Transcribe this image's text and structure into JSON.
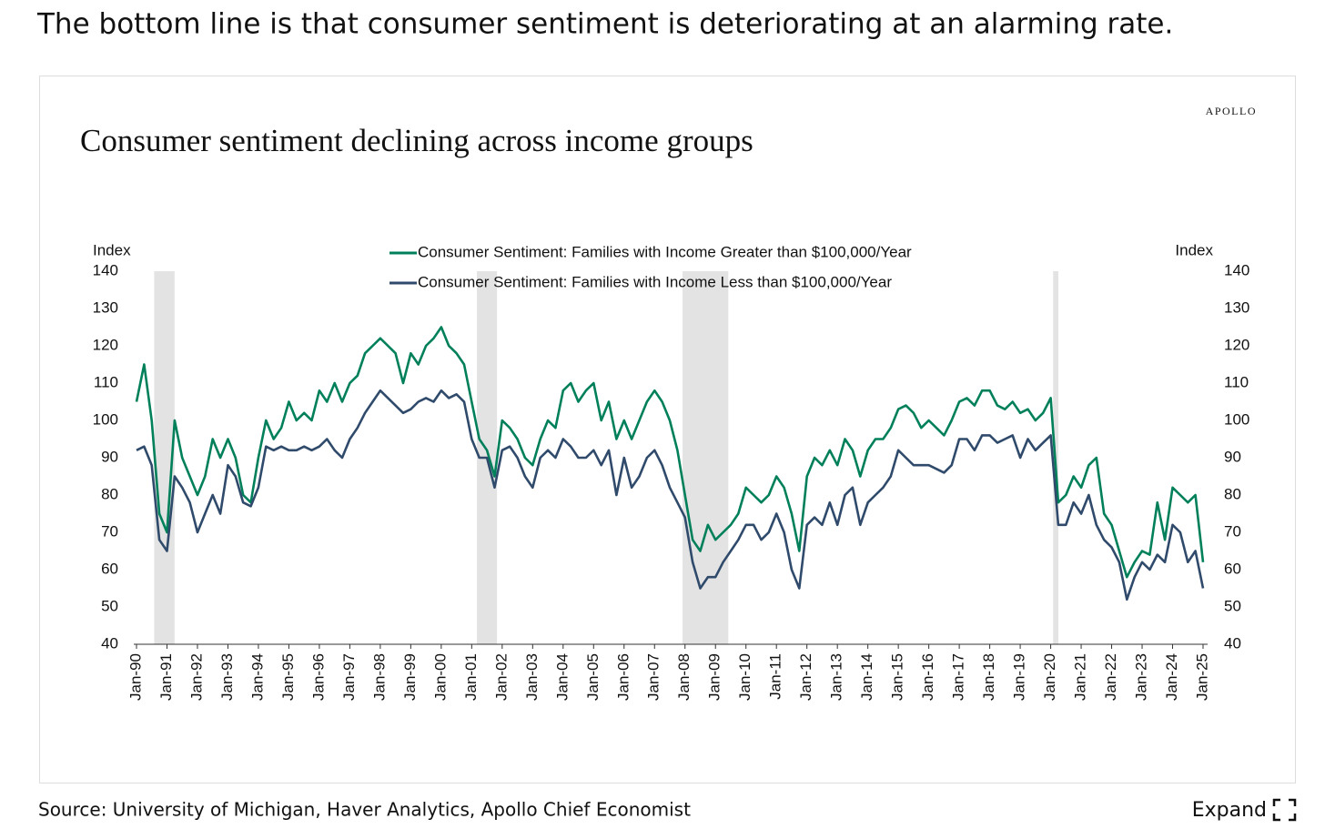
{
  "header": {
    "text": "The bottom line is that consumer sentiment is deteriorating at an alarming rate."
  },
  "chart_data": {
    "type": "line",
    "brand": "APOLLO",
    "title": "Consumer sentiment declining across income groups",
    "y_label": "Index",
    "y2_label": "Index",
    "xlim": [
      1990,
      2025
    ],
    "xticks": [
      {
        "value": 1990,
        "label": "Jan-90"
      },
      {
        "value": 1991,
        "label": "Jan-91"
      },
      {
        "value": 1992,
        "label": "Jan-92"
      },
      {
        "value": 1993,
        "label": "Jan-93"
      },
      {
        "value": 1994,
        "label": "Jan-94"
      },
      {
        "value": 1995,
        "label": "Jan-95"
      },
      {
        "value": 1996,
        "label": "Jan-96"
      },
      {
        "value": 1997,
        "label": "Jan-97"
      },
      {
        "value": 1998,
        "label": "Jan-98"
      },
      {
        "value": 1999,
        "label": "Jan-99"
      },
      {
        "value": 2000,
        "label": "Jan-00"
      },
      {
        "value": 2001,
        "label": "Jan-01"
      },
      {
        "value": 2002,
        "label": "Jan-02"
      },
      {
        "value": 2003,
        "label": "Jan-03"
      },
      {
        "value": 2004,
        "label": "Jan-04"
      },
      {
        "value": 2005,
        "label": "Jan-05"
      },
      {
        "value": 2006,
        "label": "Jan-06"
      },
      {
        "value": 2007,
        "label": "Jan-07"
      },
      {
        "value": 2008,
        "label": "Jan-08"
      },
      {
        "value": 2009,
        "label": "Jan-09"
      },
      {
        "value": 2010,
        "label": "Jan-10"
      },
      {
        "value": 2011,
        "label": "Jan-11"
      },
      {
        "value": 2012,
        "label": "Jan-12"
      },
      {
        "value": 2013,
        "label": "Jan-13"
      },
      {
        "value": 2014,
        "label": "Jan-14"
      },
      {
        "value": 2015,
        "label": "Jan-15"
      },
      {
        "value": 2016,
        "label": "Jan-16"
      },
      {
        "value": 2017,
        "label": "Jan-17"
      },
      {
        "value": 2018,
        "label": "Jan-18"
      },
      {
        "value": 2019,
        "label": "Jan-19"
      },
      {
        "value": 2020,
        "label": "Jan-20"
      },
      {
        "value": 2021,
        "label": "Jan-21"
      },
      {
        "value": 2022,
        "label": "Jan-22"
      },
      {
        "value": 2023,
        "label": "Jan-23"
      },
      {
        "value": 2024,
        "label": "Jan-24"
      },
      {
        "value": 2025,
        "label": "Jan-25"
      }
    ],
    "ylim": [
      40,
      140
    ],
    "yticks": [
      40,
      50,
      60,
      70,
      80,
      90,
      100,
      110,
      120,
      130,
      140
    ],
    "y2lim": [
      40,
      140
    ],
    "y2ticks": [
      40,
      50,
      60,
      70,
      80,
      90,
      100,
      110,
      120,
      130,
      140
    ],
    "recession_color": "#e3e3e3",
    "recessions": [
      [
        1990.58,
        1991.25
      ],
      [
        2001.17,
        2001.83
      ],
      [
        2007.92,
        2009.42
      ],
      [
        2020.08,
        2020.25
      ]
    ],
    "x": [
      1990,
      1990.25,
      1990.5,
      1990.75,
      1991,
      1991.25,
      1991.5,
      1991.75,
      1992,
      1992.25,
      1992.5,
      1992.75,
      1993,
      1993.25,
      1993.5,
      1993.75,
      1994,
      1994.25,
      1994.5,
      1994.75,
      1995,
      1995.25,
      1995.5,
      1995.75,
      1996,
      1996.25,
      1996.5,
      1996.75,
      1997,
      1997.25,
      1997.5,
      1997.75,
      1998,
      1998.25,
      1998.5,
      1998.75,
      1999,
      1999.25,
      1999.5,
      1999.75,
      2000,
      2000.25,
      2000.5,
      2000.75,
      2001,
      2001.25,
      2001.5,
      2001.75,
      2002,
      2002.25,
      2002.5,
      2002.75,
      2003,
      2003.25,
      2003.5,
      2003.75,
      2004,
      2004.25,
      2004.5,
      2004.75,
      2005,
      2005.25,
      2005.5,
      2005.75,
      2006,
      2006.25,
      2006.5,
      2006.75,
      2007,
      2007.25,
      2007.5,
      2007.75,
      2008,
      2008.25,
      2008.5,
      2008.75,
      2009,
      2009.25,
      2009.5,
      2009.75,
      2010,
      2010.25,
      2010.5,
      2010.75,
      2011,
      2011.25,
      2011.5,
      2011.75,
      2012,
      2012.25,
      2012.5,
      2012.75,
      2013,
      2013.25,
      2013.5,
      2013.75,
      2014,
      2014.25,
      2014.5,
      2014.75,
      2015,
      2015.25,
      2015.5,
      2015.75,
      2016,
      2016.25,
      2016.5,
      2016.75,
      2017,
      2017.25,
      2017.5,
      2017.75,
      2018,
      2018.25,
      2018.5,
      2018.75,
      2019,
      2019.25,
      2019.5,
      2019.75,
      2020,
      2020.25,
      2020.5,
      2020.75,
      2021,
      2021.25,
      2021.5,
      2021.75,
      2022,
      2022.25,
      2022.5,
      2022.75,
      2023,
      2023.25,
      2023.5,
      2023.75,
      2024,
      2024.25,
      2024.5,
      2024.75,
      2025
    ],
    "series": [
      {
        "name": "Consumer Sentiment: Families with Income Greater than $100,000/Year",
        "color": "#00805a",
        "values": [
          105,
          115,
          100,
          75,
          70,
          100,
          90,
          85,
          80,
          85,
          95,
          90,
          95,
          90,
          80,
          78,
          90,
          100,
          95,
          98,
          105,
          100,
          102,
          100,
          108,
          105,
          110,
          105,
          110,
          112,
          118,
          120,
          122,
          120,
          118,
          110,
          118,
          115,
          120,
          122,
          125,
          120,
          118,
          115,
          105,
          95,
          92,
          85,
          100,
          98,
          95,
          90,
          88,
          95,
          100,
          98,
          108,
          110,
          105,
          108,
          110,
          100,
          105,
          95,
          100,
          95,
          100,
          105,
          108,
          105,
          100,
          92,
          80,
          68,
          65,
          72,
          68,
          70,
          72,
          75,
          82,
          80,
          78,
          80,
          85,
          82,
          75,
          65,
          85,
          90,
          88,
          92,
          88,
          95,
          92,
          85,
          92,
          95,
          95,
          98,
          103,
          104,
          102,
          98,
          100,
          98,
          96,
          100,
          105,
          106,
          104,
          108,
          108,
          104,
          103,
          105,
          102,
          103,
          100,
          102,
          106,
          78,
          80,
          85,
          82,
          88,
          90,
          75,
          72,
          65,
          58,
          62,
          65,
          64,
          78,
          68,
          82,
          80,
          78,
          80,
          62
        ]
      },
      {
        "name": "Consumer Sentiment: Families with Income Less than $100,000/Year",
        "color": "#2f4a6b",
        "values": [
          92,
          93,
          88,
          68,
          65,
          85,
          82,
          78,
          70,
          75,
          80,
          75,
          88,
          85,
          78,
          77,
          82,
          93,
          92,
          93,
          92,
          92,
          93,
          92,
          93,
          95,
          92,
          90,
          95,
          98,
          102,
          105,
          108,
          106,
          104,
          102,
          103,
          105,
          106,
          105,
          108,
          106,
          107,
          105,
          95,
          90,
          90,
          82,
          92,
          93,
          90,
          85,
          82,
          90,
          92,
          90,
          95,
          93,
          90,
          90,
          92,
          88,
          92,
          80,
          90,
          82,
          85,
          90,
          92,
          88,
          82,
          78,
          74,
          62,
          55,
          58,
          58,
          62,
          65,
          68,
          72,
          72,
          68,
          70,
          75,
          70,
          60,
          55,
          72,
          74,
          72,
          78,
          72,
          80,
          82,
          72,
          78,
          80,
          82,
          85,
          92,
          90,
          88,
          88,
          88,
          87,
          86,
          88,
          95,
          95,
          92,
          96,
          96,
          94,
          95,
          96,
          90,
          95,
          92,
          94,
          96,
          72,
          72,
          78,
          75,
          80,
          72,
          68,
          66,
          62,
          52,
          58,
          62,
          60,
          64,
          62,
          72,
          70,
          62,
          65,
          55
        ]
      }
    ]
  },
  "footer": {
    "source": "Source: University of Michigan, Haver Analytics, Apollo Chief Economist",
    "expand": "Expand"
  }
}
